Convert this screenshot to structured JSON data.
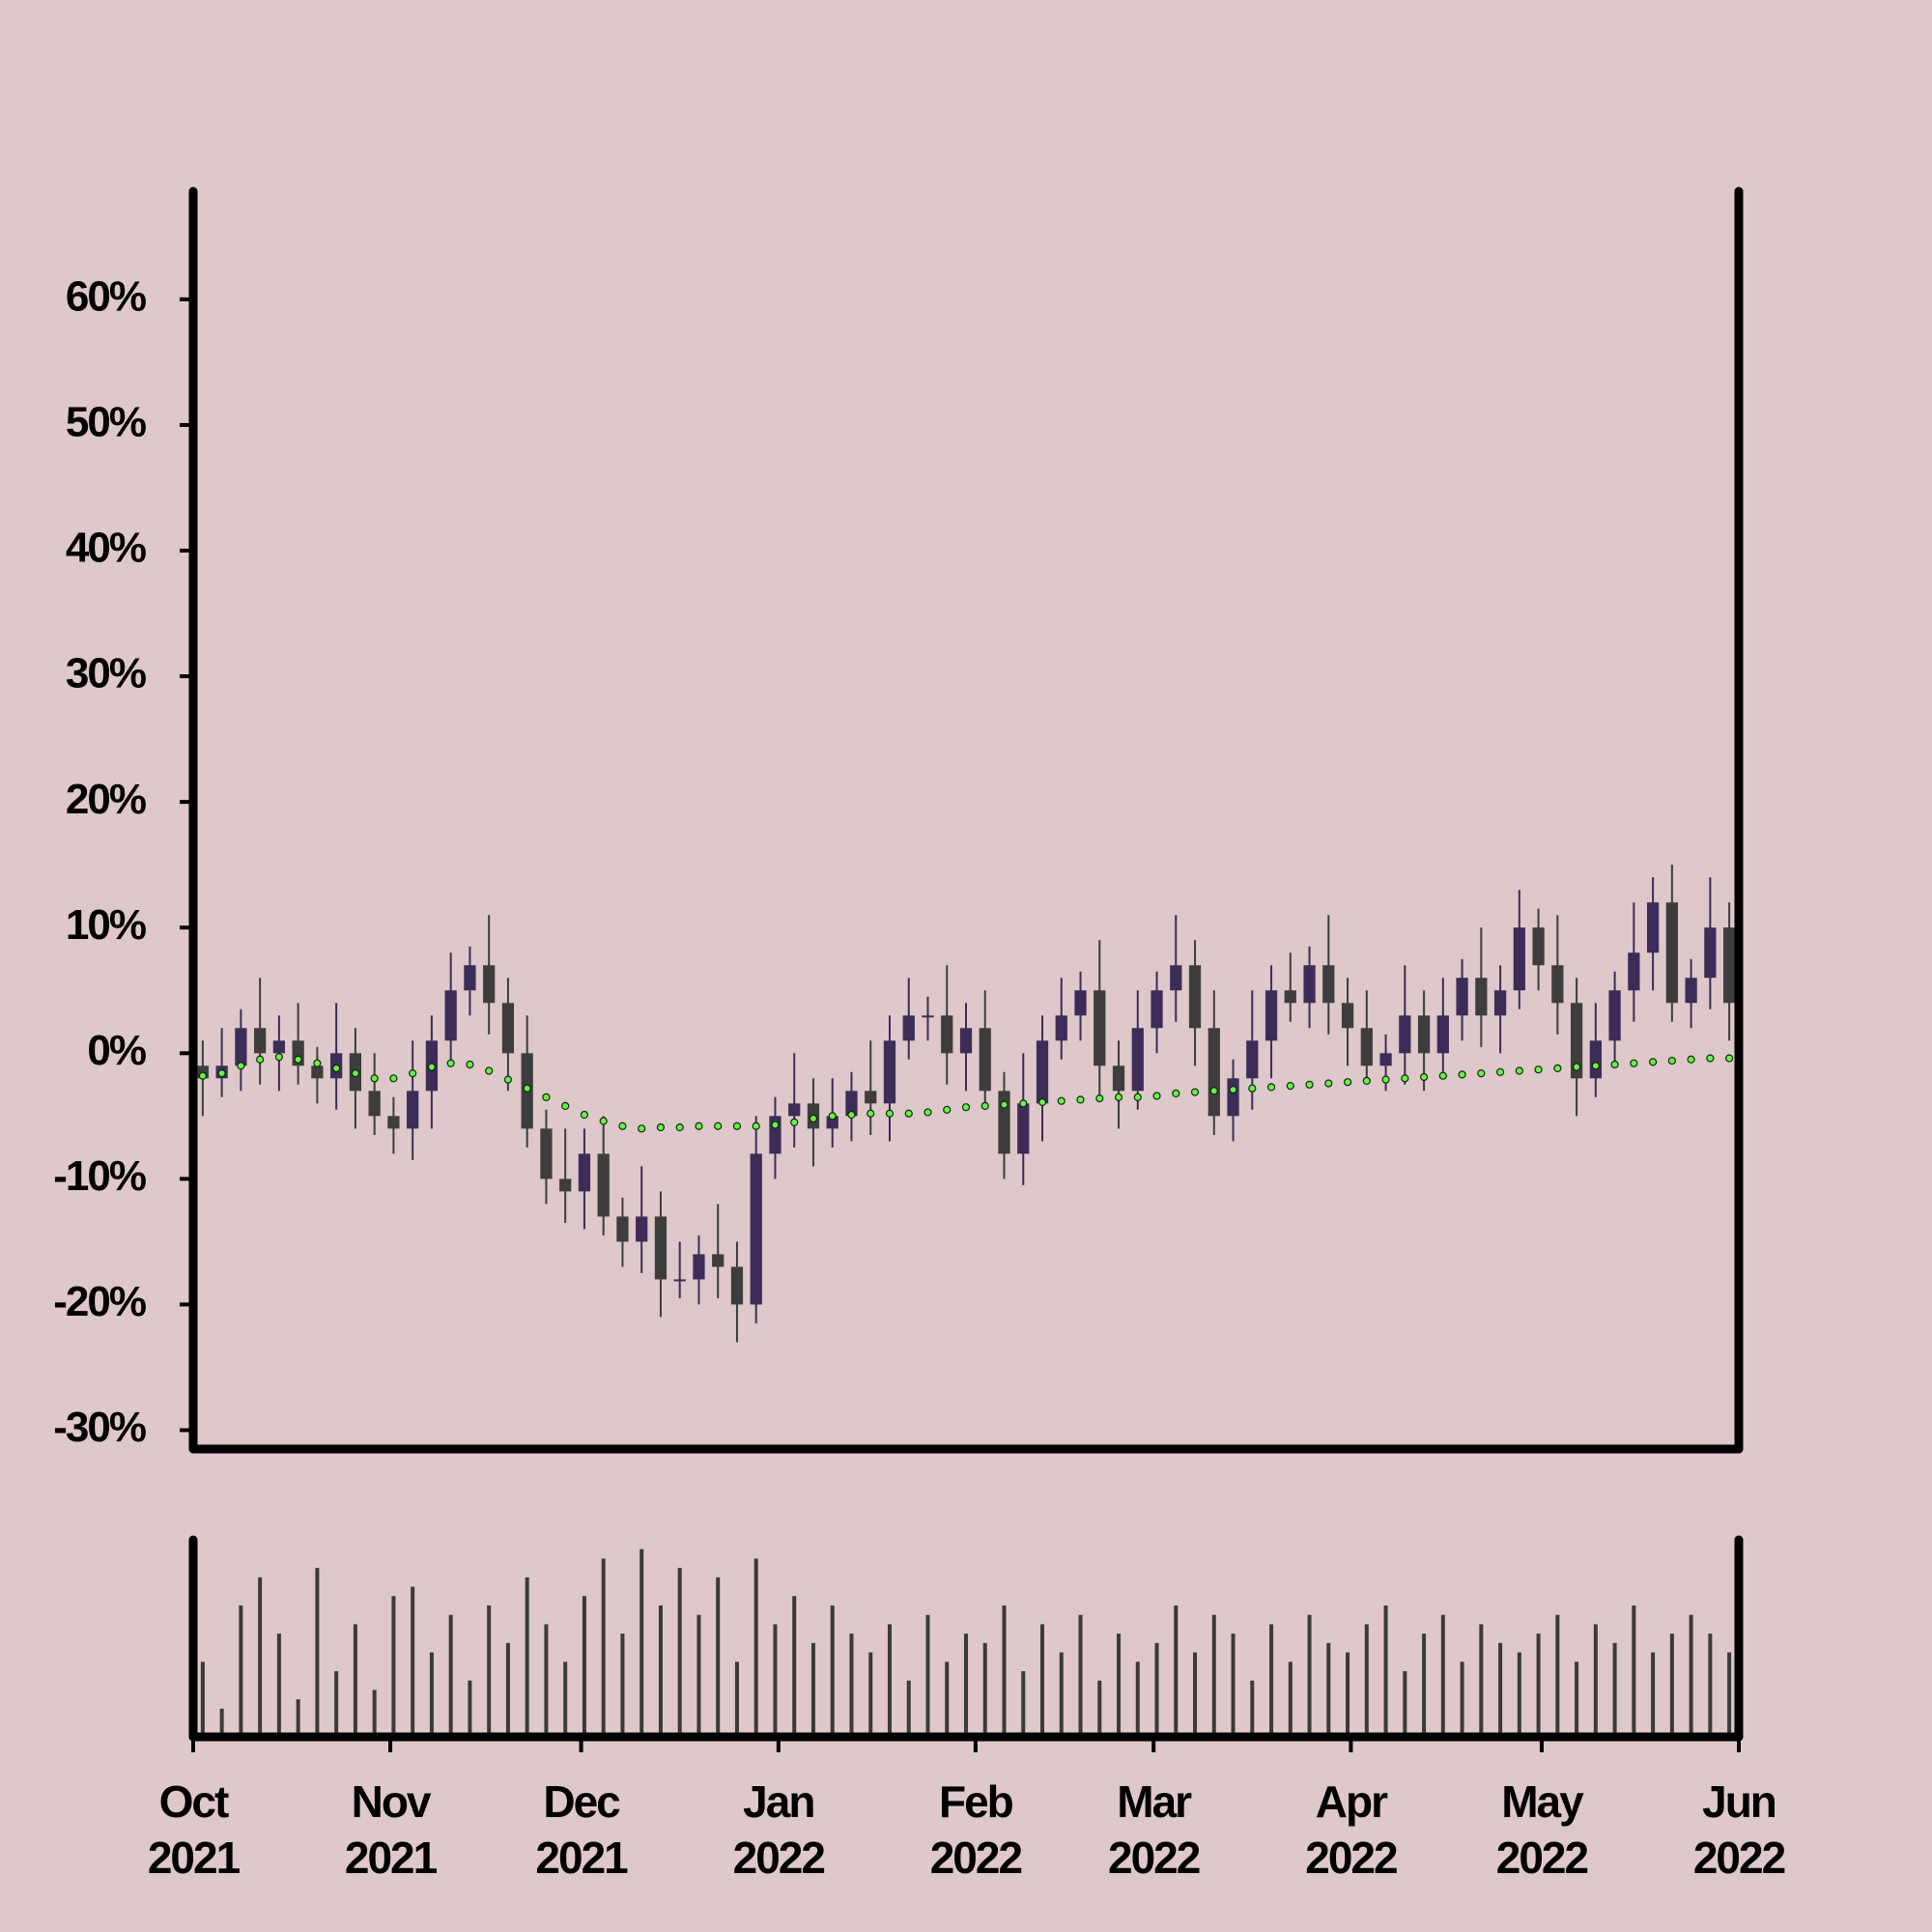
{
  "chart_data": {
    "type": "candlestick",
    "categories": [
      null,
      null,
      null,
      null,
      null,
      null,
      null,
      null,
      null,
      null,
      null,
      null,
      null,
      null,
      null,
      null,
      null,
      null,
      null,
      null,
      null,
      null,
      null,
      null,
      null,
      null,
      null,
      null,
      null,
      null,
      null,
      null,
      null,
      null,
      null,
      null,
      null,
      null,
      null,
      null,
      null,
      null,
      null,
      null,
      null,
      null,
      null,
      null,
      null,
      null,
      null,
      null,
      null,
      null,
      null,
      null,
      null,
      null,
      null,
      null,
      null,
      null,
      null,
      null,
      null,
      null,
      null,
      null,
      null,
      null,
      null,
      null,
      null,
      null,
      null,
      null,
      null,
      null,
      null,
      null,
      null
    ],
    "xlim": [
      0,
      81
    ],
    "xticks": [
      {
        "value": 0,
        "label": "Oct\n2021"
      },
      {
        "value": 10.33,
        "label": "Nov\n2021"
      },
      {
        "value": 20.33,
        "label": "Dec\n2021"
      },
      {
        "value": 30.67,
        "label": "Jan\n2022"
      },
      {
        "value": 41,
        "label": "Feb\n2022"
      },
      {
        "value": 50.33,
        "label": "Mar\n2022"
      },
      {
        "value": 60.67,
        "label": "Apr\n2022"
      },
      {
        "value": 70.67,
        "label": "May\n2022"
      },
      {
        "value": 81,
        "label": "Jun\n2022"
      }
    ],
    "ylim": [
      -31.5,
      68.6
    ],
    "yticks": [
      {
        "value": -30,
        "label": "-30%"
      },
      {
        "value": -20,
        "label": "-20%"
      },
      {
        "value": -10,
        "label": "-10%"
      },
      {
        "value": 0,
        "label": "0%"
      },
      {
        "value": 10,
        "label": "10%"
      },
      {
        "value": 20,
        "label": "20%"
      },
      {
        "value": 30,
        "label": "30%"
      },
      {
        "value": 40,
        "label": "40%"
      },
      {
        "value": 50,
        "label": "50%"
      },
      {
        "value": 60,
        "label": "60%"
      }
    ],
    "up_color": "#3b2d58",
    "down_color": "#3d3d3d",
    "open": [
      -1,
      -2,
      -1,
      2,
      0,
      1,
      -1,
      -2,
      0,
      -3,
      -5,
      -6,
      -3,
      1,
      5,
      7,
      4,
      0,
      -6,
      -10,
      -11,
      -8,
      -13,
      -15,
      -13,
      -18,
      -18,
      -16,
      -17,
      -20,
      -8,
      -5,
      -4,
      -6,
      -5,
      -3,
      -4,
      1,
      3,
      3,
      0,
      2,
      -3,
      -8,
      -4,
      1,
      3,
      5,
      -1,
      -3,
      2,
      5,
      7,
      2,
      -5,
      -2,
      1,
      5,
      4,
      7,
      4,
      2,
      -1,
      0,
      3,
      0,
      3,
      6,
      3,
      5,
      10,
      7,
      4,
      -2,
      1,
      5,
      8,
      12,
      4,
      6,
      10
    ],
    "high": [
      1,
      2,
      3.5,
      6,
      3,
      4,
      0.5,
      4,
      2,
      0,
      -3.5,
      1,
      3,
      8,
      8.5,
      11,
      6,
      3,
      -4.5,
      -6,
      -6,
      -5,
      -11.5,
      -9,
      -11,
      -15,
      -14.5,
      -12,
      -15,
      -5,
      -3.5,
      0,
      -2,
      -2,
      -1.5,
      1,
      3,
      6,
      4.5,
      7,
      4,
      5,
      -1.5,
      0,
      3,
      6,
      6.5,
      9,
      1,
      5,
      6.5,
      11,
      9,
      5,
      -0.5,
      5,
      7,
      8,
      8.5,
      11,
      6,
      5,
      1.5,
      7,
      5,
      6,
      7.5,
      10,
      7,
      13,
      11.5,
      11,
      6,
      4,
      6.5,
      12,
      14,
      15,
      7.5,
      14,
      12
    ],
    "low": [
      -5,
      -3.5,
      -3,
      -2.5,
      -3,
      -2.5,
      -4,
      -4.5,
      -6,
      -6.5,
      -8,
      -8.5,
      -6,
      -0.5,
      3,
      1.5,
      -3,
      -7.5,
      -12,
      -13.5,
      -14,
      -14.5,
      -17,
      -17.5,
      -21,
      -19.5,
      -20,
      -19.5,
      -23,
      -21.5,
      -10,
      -7.5,
      -9,
      -7.5,
      -7,
      -6.5,
      -7,
      -0.5,
      1,
      -2.5,
      -3,
      -4.5,
      -10,
      -10.5,
      -7,
      -0.5,
      1,
      -3.5,
      -6,
      -4.5,
      0,
      2.5,
      -1,
      -6.5,
      -7,
      -4.5,
      -2,
      2.5,
      2,
      1.5,
      -1,
      -2.5,
      -3,
      -2.5,
      -3,
      -1.5,
      1,
      0.5,
      0,
      3.5,
      5,
      1.5,
      -5,
      -3.5,
      -1,
      2.5,
      5,
      2.5,
      2,
      3.5,
      1
    ],
    "close": [
      -2,
      -1,
      2,
      0,
      1,
      -1,
      -2,
      0,
      -3,
      -5,
      -6,
      -3,
      1,
      5,
      7,
      4,
      0,
      -6,
      -10,
      -11,
      -8,
      -13,
      -15,
      -13,
      -18,
      -18,
      -16,
      -17,
      -20,
      -8,
      -5,
      -4,
      -6,
      -5,
      -3,
      -4,
      1,
      3,
      3,
      0,
      2,
      -3,
      -8,
      -4,
      1,
      3,
      5,
      -1,
      -3,
      2,
      5,
      7,
      2,
      -5,
      -2,
      1,
      5,
      4,
      7,
      4,
      2,
      -1,
      0,
      3,
      0,
      3,
      6,
      3,
      5,
      10,
      7,
      4,
      -2,
      1,
      5,
      8,
      12,
      4,
      6,
      10,
      4
    ],
    "moving_average": {
      "color": "#6cf04a",
      "values": [
        -1.8,
        -1.6,
        -1,
        -0.5,
        -0.3,
        -0.5,
        -0.8,
        -1.2,
        -1.6,
        -2,
        -2,
        -1.6,
        -1.1,
        -0.8,
        -0.9,
        -1.4,
        -2.1,
        -2.8,
        -3.5,
        -4.2,
        -4.9,
        -5.4,
        -5.8,
        -6,
        -5.9,
        -5.9,
        -5.8,
        -5.8,
        -5.8,
        -5.8,
        -5.7,
        -5.5,
        -5.2,
        -5,
        -4.9,
        -4.8,
        -4.8,
        -4.8,
        -4.7,
        -4.5,
        -4.3,
        -4.2,
        -4.1,
        -4,
        -3.9,
        -3.8,
        -3.7,
        -3.6,
        -3.5,
        -3.5,
        -3.4,
        -3.2,
        -3.1,
        -3,
        -2.9,
        -2.8,
        -2.7,
        -2.6,
        -2.5,
        -2.4,
        -2.3,
        -2.2,
        -2.1,
        -2,
        -1.9,
        -1.8,
        -1.7,
        -1.6,
        -1.5,
        -1.4,
        -1.3,
        -1.2,
        -1.1,
        -1,
        -0.9,
        -0.8,
        -0.7,
        -0.6,
        -0.5,
        -0.4,
        -0.4
      ]
    },
    "volume": {
      "color": "#3a3a3a",
      "ylim": [
        0,
        105
      ],
      "values": [
        40,
        15,
        70,
        85,
        55,
        20,
        90,
        35,
        60,
        25,
        75,
        80,
        45,
        65,
        30,
        70,
        50,
        85,
        60,
        40,
        75,
        95,
        55,
        100,
        70,
        90,
        65,
        85,
        40,
        95,
        60,
        75,
        50,
        70,
        55,
        45,
        60,
        30,
        65,
        40,
        55,
        50,
        70,
        35,
        60,
        45,
        65,
        30,
        55,
        40,
        50,
        70,
        45,
        65,
        55,
        30,
        60,
        40,
        65,
        50,
        45,
        60,
        70,
        35,
        55,
        65,
        40,
        60,
        50,
        45,
        55,
        65,
        40,
        60,
        50,
        70,
        45,
        55,
        65,
        55,
        45
      ]
    }
  }
}
